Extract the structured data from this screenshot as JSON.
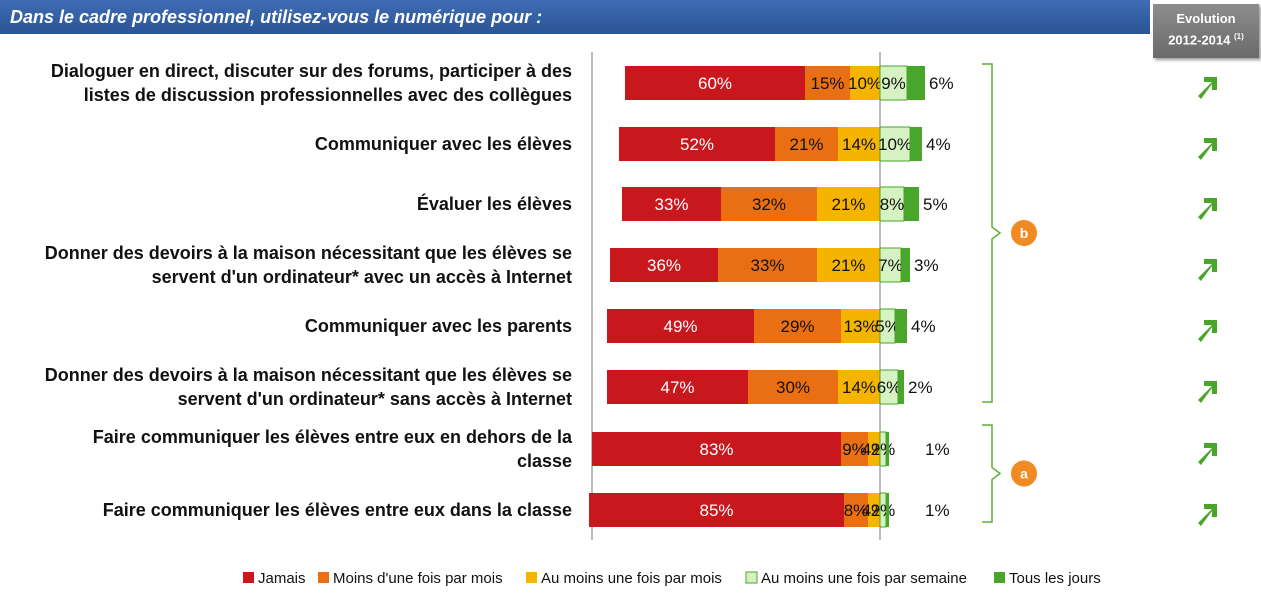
{
  "header": {
    "title": "Dans le cadre professionnel, utilisez-vous le numérique pour :",
    "evolution_label": "Evolution",
    "evolution_period": "2012-2014",
    "evolution_note": "(1)"
  },
  "chart_data": {
    "type": "bar",
    "stacked": true,
    "orientation": "horizontal",
    "categories": [
      [
        "Dialoguer en direct, discuter sur des forums, participer à des",
        "listes de discussion professionnelles avec  des collègues"
      ],
      [
        "Communiquer avec les élèves"
      ],
      [
        "Évaluer les élèves"
      ],
      [
        "Donner des devoirs à la maison nécessitant que les élèves se",
        "servent d'un ordinateur* avec un accès à Internet"
      ],
      [
        "Communiquer avec les parents"
      ],
      [
        "Donner des devoirs à la maison nécessitant que les élèves se",
        "servent d'un ordinateur* sans accès à Internet"
      ],
      [
        "Faire communiquer les élèves entre eux en dehors de la",
        "classe"
      ],
      [
        "Faire communiquer les élèves entre eux dans la classe"
      ]
    ],
    "series": [
      {
        "name": "Jamais",
        "color": "#c8181e",
        "values": [
          60,
          52,
          33,
          36,
          49,
          47,
          83,
          85
        ]
      },
      {
        "name": "Moins d'une fois par mois",
        "color": "#ea6f12",
        "values": [
          15,
          21,
          32,
          33,
          29,
          30,
          9,
          8
        ]
      },
      {
        "name": "Au moins une fois par mois",
        "color": "#f4b400",
        "values": [
          10,
          14,
          21,
          21,
          13,
          14,
          4,
          4
        ]
      },
      {
        "name": "Au moins une fois par semaine",
        "color": "#d7f2c2",
        "values": [
          9,
          10,
          8,
          7,
          5,
          6,
          2,
          2
        ]
      },
      {
        "name": "Tous les jours",
        "color": "#4aa52b",
        "values": [
          6,
          4,
          5,
          3,
          4,
          2,
          1,
          1
        ]
      }
    ],
    "groups": [
      {
        "label": "b",
        "rows": [
          0,
          5
        ],
        "color": "#f08a22"
      },
      {
        "label": "a",
        "rows": [
          6,
          7
        ],
        "color": "#f08a22"
      }
    ],
    "evolution": [
      "up",
      "up",
      "up",
      "up",
      "up",
      "up",
      "up",
      "up"
    ],
    "legend_position": "bottom"
  }
}
